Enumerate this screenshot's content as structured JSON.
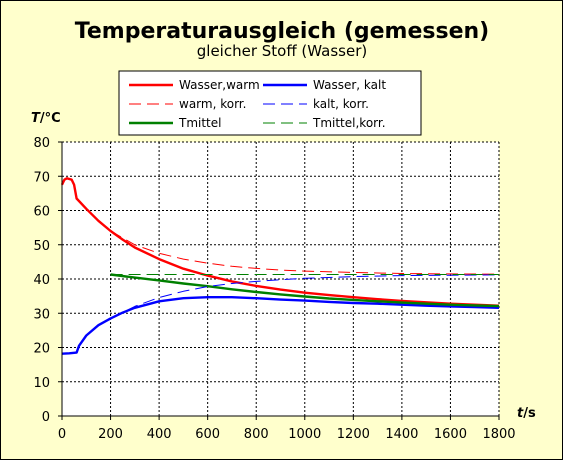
{
  "chart_data": {
    "type": "line",
    "title": "Temperaturausgleich (gemessen)",
    "subtitle": "gleicher Stoff (Wasser)",
    "xlabel_var": "t",
    "xlabel_unit": "/s",
    "ylabel_var": "T",
    "ylabel_unit": "/°C",
    "xlim": [
      0,
      1800
    ],
    "ylim": [
      0,
      80
    ],
    "xticks": [
      0,
      200,
      400,
      600,
      800,
      1000,
      1200,
      1400,
      1600,
      1800
    ],
    "yticks": [
      0,
      10,
      20,
      30,
      40,
      50,
      60,
      70,
      80
    ],
    "grid": true,
    "legend_position": "top",
    "series": [
      {
        "name": "Wasser,warm",
        "color": "#ff0000",
        "dash": "solid",
        "x": [
          0,
          10,
          20,
          30,
          40,
          50,
          60,
          100,
          150,
          200,
          250,
          300,
          400,
          500,
          600,
          700,
          800,
          900,
          1000,
          1100,
          1200,
          1300,
          1400,
          1500,
          1600,
          1700,
          1800
        ],
        "y": [
          67.5,
          69,
          69.4,
          69.2,
          69,
          67.5,
          63.5,
          60.5,
          57,
          54,
          51.5,
          49.2,
          45.8,
          43,
          41,
          39.3,
          38,
          36.9,
          36,
          35.3,
          34.7,
          34.1,
          33.6,
          33.2,
          32.8,
          32.5,
          32.2
        ]
      },
      {
        "name": "Wasser, kalt",
        "color": "#0000ff",
        "dash": "solid",
        "x": [
          0,
          30,
          60,
          70,
          100,
          150,
          200,
          250,
          300,
          400,
          500,
          600,
          700,
          800,
          900,
          1000,
          1100,
          1200,
          1300,
          1400,
          1500,
          1600,
          1700,
          1800
        ],
        "y": [
          18.2,
          18.3,
          18.5,
          20.5,
          23.5,
          26.5,
          28.5,
          30.2,
          31.6,
          33.5,
          34.4,
          34.7,
          34.7,
          34.4,
          34,
          33.7,
          33.3,
          33,
          32.8,
          32.5,
          32.2,
          32,
          31.8,
          31.6
        ]
      },
      {
        "name": "Tmittel",
        "color": "#008000",
        "dash": "solid",
        "x": [
          200,
          300,
          400,
          500,
          600,
          700,
          800,
          900,
          1000,
          1100,
          1200,
          1300,
          1400,
          1500,
          1600,
          1700,
          1800
        ],
        "y": [
          41.3,
          40.4,
          39.6,
          38.7,
          37.9,
          37,
          36.2,
          35.5,
          34.9,
          34.3,
          33.9,
          33.5,
          33.1,
          32.8,
          32.5,
          32.3,
          32.1
        ]
      },
      {
        "name": "warm, korr.",
        "color": "#ff0000",
        "dash": "dashed",
        "x": [
          200,
          300,
          400,
          500,
          600,
          700,
          800,
          900,
          1000,
          1200,
          1400,
          1600,
          1800
        ],
        "y": [
          54,
          50,
          47.5,
          45.8,
          44.6,
          43.7,
          43.1,
          42.6,
          42.3,
          41.9,
          41.6,
          41.5,
          41.4
        ]
      },
      {
        "name": "kalt, korr.",
        "color": "#0000ff",
        "dash": "dashed",
        "x": [
          200,
          300,
          400,
          500,
          600,
          700,
          800,
          900,
          1000,
          1200,
          1400,
          1600,
          1800
        ],
        "y": [
          28.5,
          32,
          34.6,
          36.4,
          37.8,
          38.7,
          39.3,
          39.8,
          40.2,
          40.7,
          41,
          41.1,
          41.2
        ]
      },
      {
        "name": "Tmittel,korr.",
        "color": "#008000",
        "dash": "dashed",
        "x": [
          200,
          400,
          600,
          800,
          1000,
          1200,
          1400,
          1600,
          1800
        ],
        "y": [
          41.3,
          41.3,
          41.3,
          41.3,
          41.3,
          41.3,
          41.3,
          41.3,
          41.3
        ]
      }
    ],
    "legend_order": [
      0,
      1,
      3,
      4,
      2,
      5
    ]
  }
}
